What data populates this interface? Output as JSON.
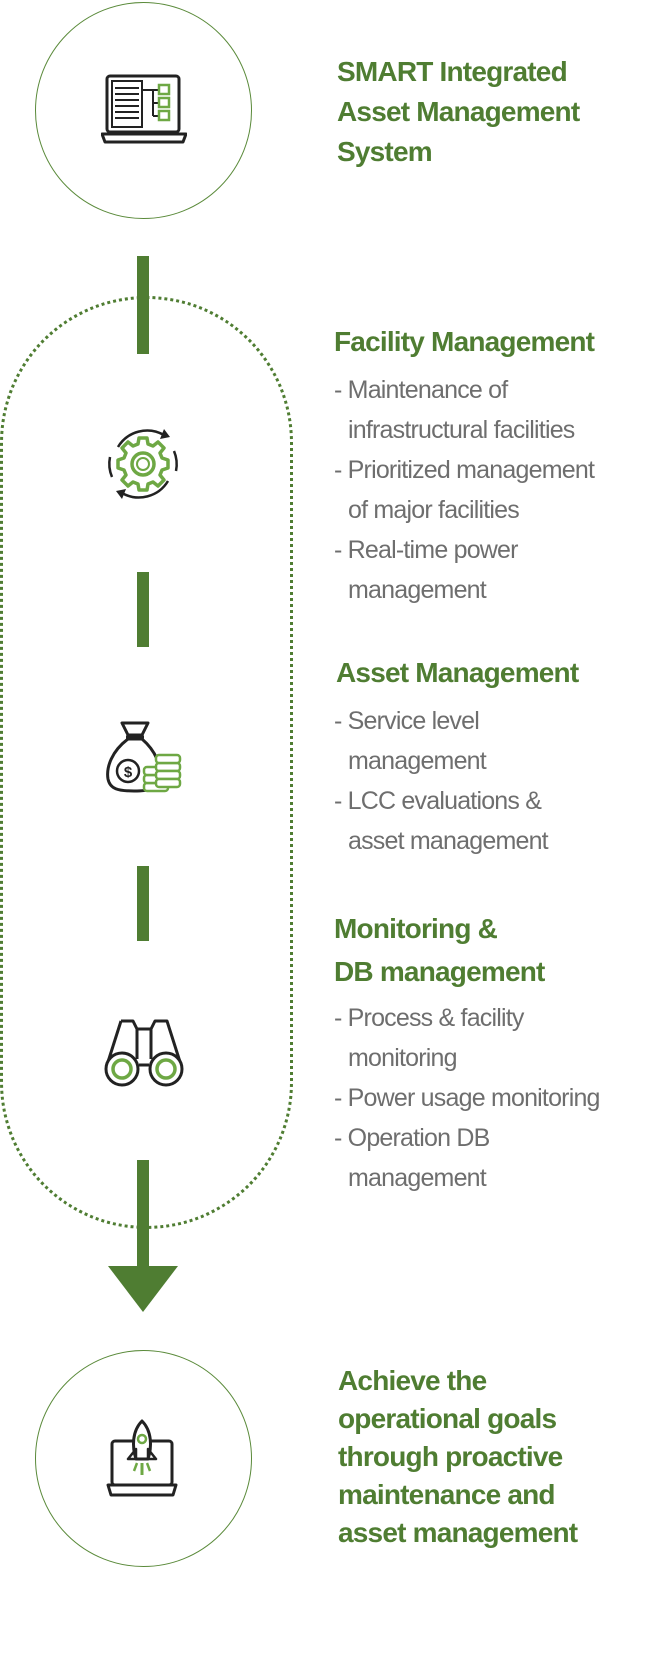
{
  "steps": [
    {
      "title": "SMART Integrated\nAsset Management\nSystem",
      "icon": "laptop-dashboard-icon"
    },
    {
      "title": "Facility Management",
      "icon": "gear-cycle-icon",
      "bullets": [
        "- Maintenance of\ninfrastructural facilities",
        "- Prioritized management\nof major facilities",
        "- Real-time power\nmanagement"
      ]
    },
    {
      "title": "Asset Management",
      "icon": "money-bag-icon",
      "bullets": [
        "- Service level\nmanagement",
        "- LCC evaluations &\nasset management"
      ]
    },
    {
      "title": "Monitoring &\nDB management",
      "icon": "binoculars-icon",
      "bullets": [
        "- Process & facility\nmonitoring",
        "- Power usage monitoring",
        "- Operation DB\nmanagement"
      ]
    },
    {
      "title": "Achieve the\noperational goals\nthrough proactive\nmaintenance and\nasset management",
      "icon": "rocket-laptop-icon"
    }
  ],
  "colors": {
    "accent": "#4f7d32",
    "circle_border": "#5a8a3a",
    "body_text": "#6e6e6e",
    "icon_stroke": "#222222",
    "icon_fill": "#6ea844"
  }
}
